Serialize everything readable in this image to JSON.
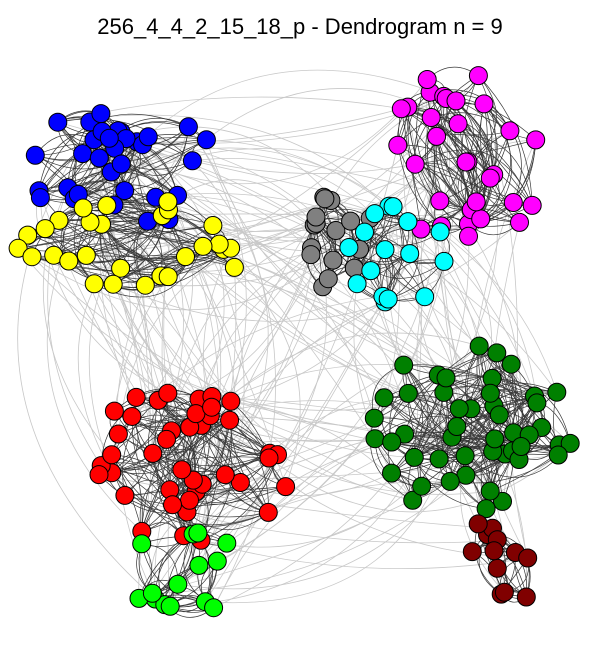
{
  "title": "256_4_4_2_15_18_p - Dendrogram n = 9",
  "colors": {
    "inter_edge": "#c8c8c8",
    "intra_edge": "#3a3a3a",
    "node_stroke": "#000000",
    "background": "#ffffff"
  },
  "communities": [
    {
      "id": "blue",
      "color": "#0000ff",
      "node_count": 32
    },
    {
      "id": "yellow",
      "color": "#ffff00",
      "node_count": 28
    },
    {
      "id": "magenta",
      "color": "#ff00ff",
      "node_count": 31
    },
    {
      "id": "gray",
      "color": "#808080",
      "node_count": 16
    },
    {
      "id": "cyan",
      "color": "#00ffff",
      "node_count": 16
    },
    {
      "id": "red",
      "color": "#ff0000",
      "node_count": 41
    },
    {
      "id": "green",
      "color": "#008000",
      "node_count": 47
    },
    {
      "id": "light-green",
      "color": "#00ff00",
      "node_count": 14
    },
    {
      "id": "dark-red",
      "color": "#800000",
      "node_count": 13
    }
  ]
}
